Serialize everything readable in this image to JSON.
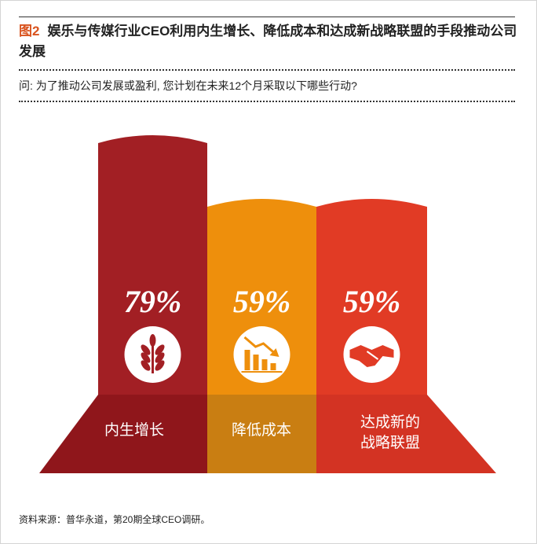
{
  "header": {
    "figure_label": "图2",
    "title": "娱乐与传媒行业CEO利用内生增长、降低成本和达成新战略联盟的手段推动公司发展"
  },
  "question": "问: 为了推动公司发展或盈利, 您计划在未来12个月采取以下哪些行动?",
  "source": "资料来源：普华永道，第20期全球CEO调研。",
  "colors": {
    "accent": "#d9531e",
    "bar1": "#a21f24",
    "bar1_base": "#8f161b",
    "bar2": "#ee8f0c",
    "bar2_base": "#c97e12",
    "bar3": "#e13b25",
    "bar3_base": "#d33323"
  },
  "chart_data": {
    "type": "bar",
    "categories": [
      "内生增长",
      "降低成本",
      "达成新的战略联盟"
    ],
    "values": [
      79,
      59,
      59
    ],
    "value_labels": [
      "79%",
      "59%",
      "59%"
    ],
    "category_lines": [
      [
        "内生增长"
      ],
      [
        "降低成本"
      ],
      [
        "达成新的",
        "战略联盟"
      ]
    ],
    "icons": [
      "wheat-icon",
      "declining-chart-icon",
      "handshake-icon"
    ],
    "unit": "%",
    "ylim": [
      0,
      100
    ],
    "title": "",
    "xlabel": "",
    "ylabel": ""
  }
}
